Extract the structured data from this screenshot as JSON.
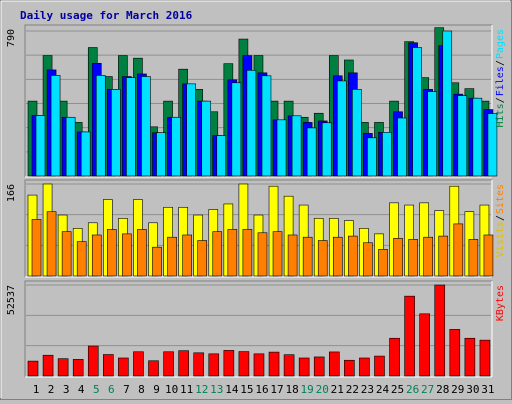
{
  "chart_data": [
    {
      "type": "bar",
      "title": "Daily usage for March 2016",
      "categories": [
        "1",
        "2",
        "3",
        "4",
        "5",
        "6",
        "7",
        "8",
        "9",
        "10",
        "11",
        "12",
        "13",
        "14",
        "15",
        "16",
        "17",
        "18",
        "19",
        "20",
        "21",
        "22",
        "23",
        "24",
        "25",
        "26",
        "27",
        "28",
        "29",
        "30",
        "31"
      ],
      "weekend_days": [
        "5",
        "6",
        "12",
        "13",
        "19",
        "20",
        "26",
        "27"
      ],
      "ytick_label": "790",
      "ylim": [
        0,
        790
      ],
      "legend": [
        "Pages",
        "Files",
        "Hits"
      ],
      "series": [
        {
          "name": "Hits",
          "color": "#008040",
          "values": [
            408,
            656,
            408,
            292,
            700,
            542,
            656,
            642,
            268,
            408,
            582,
            472,
            350,
            612,
            746,
            656,
            408,
            408,
            320,
            342,
            656,
            632,
            292,
            292,
            408,
            732,
            536,
            808,
            508,
            476,
            408
          ]
        },
        {
          "name": "Files",
          "color": "#0000ff",
          "values": [
            330,
            578,
            320,
            240,
            614,
            472,
            542,
            556,
            236,
            320,
            502,
            408,
            220,
            524,
            656,
            562,
            306,
            328,
            292,
            300,
            546,
            562,
            232,
            238,
            350,
            726,
            472,
            710,
            446,
            424,
            362
          ]
        },
        {
          "name": "Pages",
          "color": "#00e0ff",
          "values": [
            330,
            548,
            320,
            240,
            548,
            472,
            536,
            542,
            236,
            320,
            502,
            408,
            220,
            508,
            576,
            546,
            306,
            328,
            262,
            290,
            518,
            472,
            208,
            238,
            316,
            700,
            460,
            790,
            438,
            424,
            340
          ]
        }
      ]
    },
    {
      "type": "bar",
      "categories": [
        "1",
        "2",
        "3",
        "4",
        "5",
        "6",
        "7",
        "8",
        "9",
        "10",
        "11",
        "12",
        "13",
        "14",
        "15",
        "16",
        "17",
        "18",
        "19",
        "20",
        "21",
        "22",
        "23",
        "24",
        "25",
        "26",
        "27",
        "28",
        "29",
        "30",
        "31"
      ],
      "ytick_label": "166",
      "ylim": [
        0,
        166
      ],
      "legend": [
        "Sites",
        "Visits"
      ],
      "series": [
        {
          "name": "Visits",
          "color": "#ffff00",
          "values": [
            146,
            166,
            110,
            86,
            96,
            138,
            104,
            138,
            96,
            124,
            124,
            110,
            120,
            130,
            166,
            110,
            162,
            144,
            128,
            104,
            104,
            100,
            86,
            76,
            132,
            128,
            132,
            118,
            162,
            116,
            128
          ]
        },
        {
          "name": "Sites",
          "color": "#ff8000",
          "values": [
            102,
            116,
            80,
            62,
            74,
            84,
            76,
            84,
            52,
            70,
            74,
            64,
            80,
            84,
            84,
            78,
            80,
            74,
            70,
            64,
            70,
            72,
            60,
            48,
            68,
            66,
            70,
            72,
            94,
            66,
            74
          ]
        }
      ]
    },
    {
      "type": "bar",
      "categories": [
        "1",
        "2",
        "3",
        "4",
        "5",
        "6",
        "7",
        "8",
        "9",
        "10",
        "11",
        "12",
        "13",
        "14",
        "15",
        "16",
        "17",
        "18",
        "19",
        "20",
        "21",
        "22",
        "23",
        "24",
        "25",
        "26",
        "27",
        "28",
        "29",
        "30",
        "31"
      ],
      "ytick_label": "52537",
      "ylim": [
        0,
        52537
      ],
      "legend": [
        "KBytes"
      ],
      "series": [
        {
          "name": "KBytes",
          "color": "#ff0000",
          "values": [
            8600,
            12000,
            10000,
            9600,
            17300,
            12400,
            10400,
            14000,
            8800,
            14000,
            14600,
            13400,
            12800,
            14800,
            14100,
            12800,
            13800,
            12300,
            10400,
            11000,
            13900,
            9100,
            10400,
            11500,
            21800,
            46100,
            35900,
            52537,
            26900,
            21800,
            20700
          ]
        }
      ]
    }
  ]
}
